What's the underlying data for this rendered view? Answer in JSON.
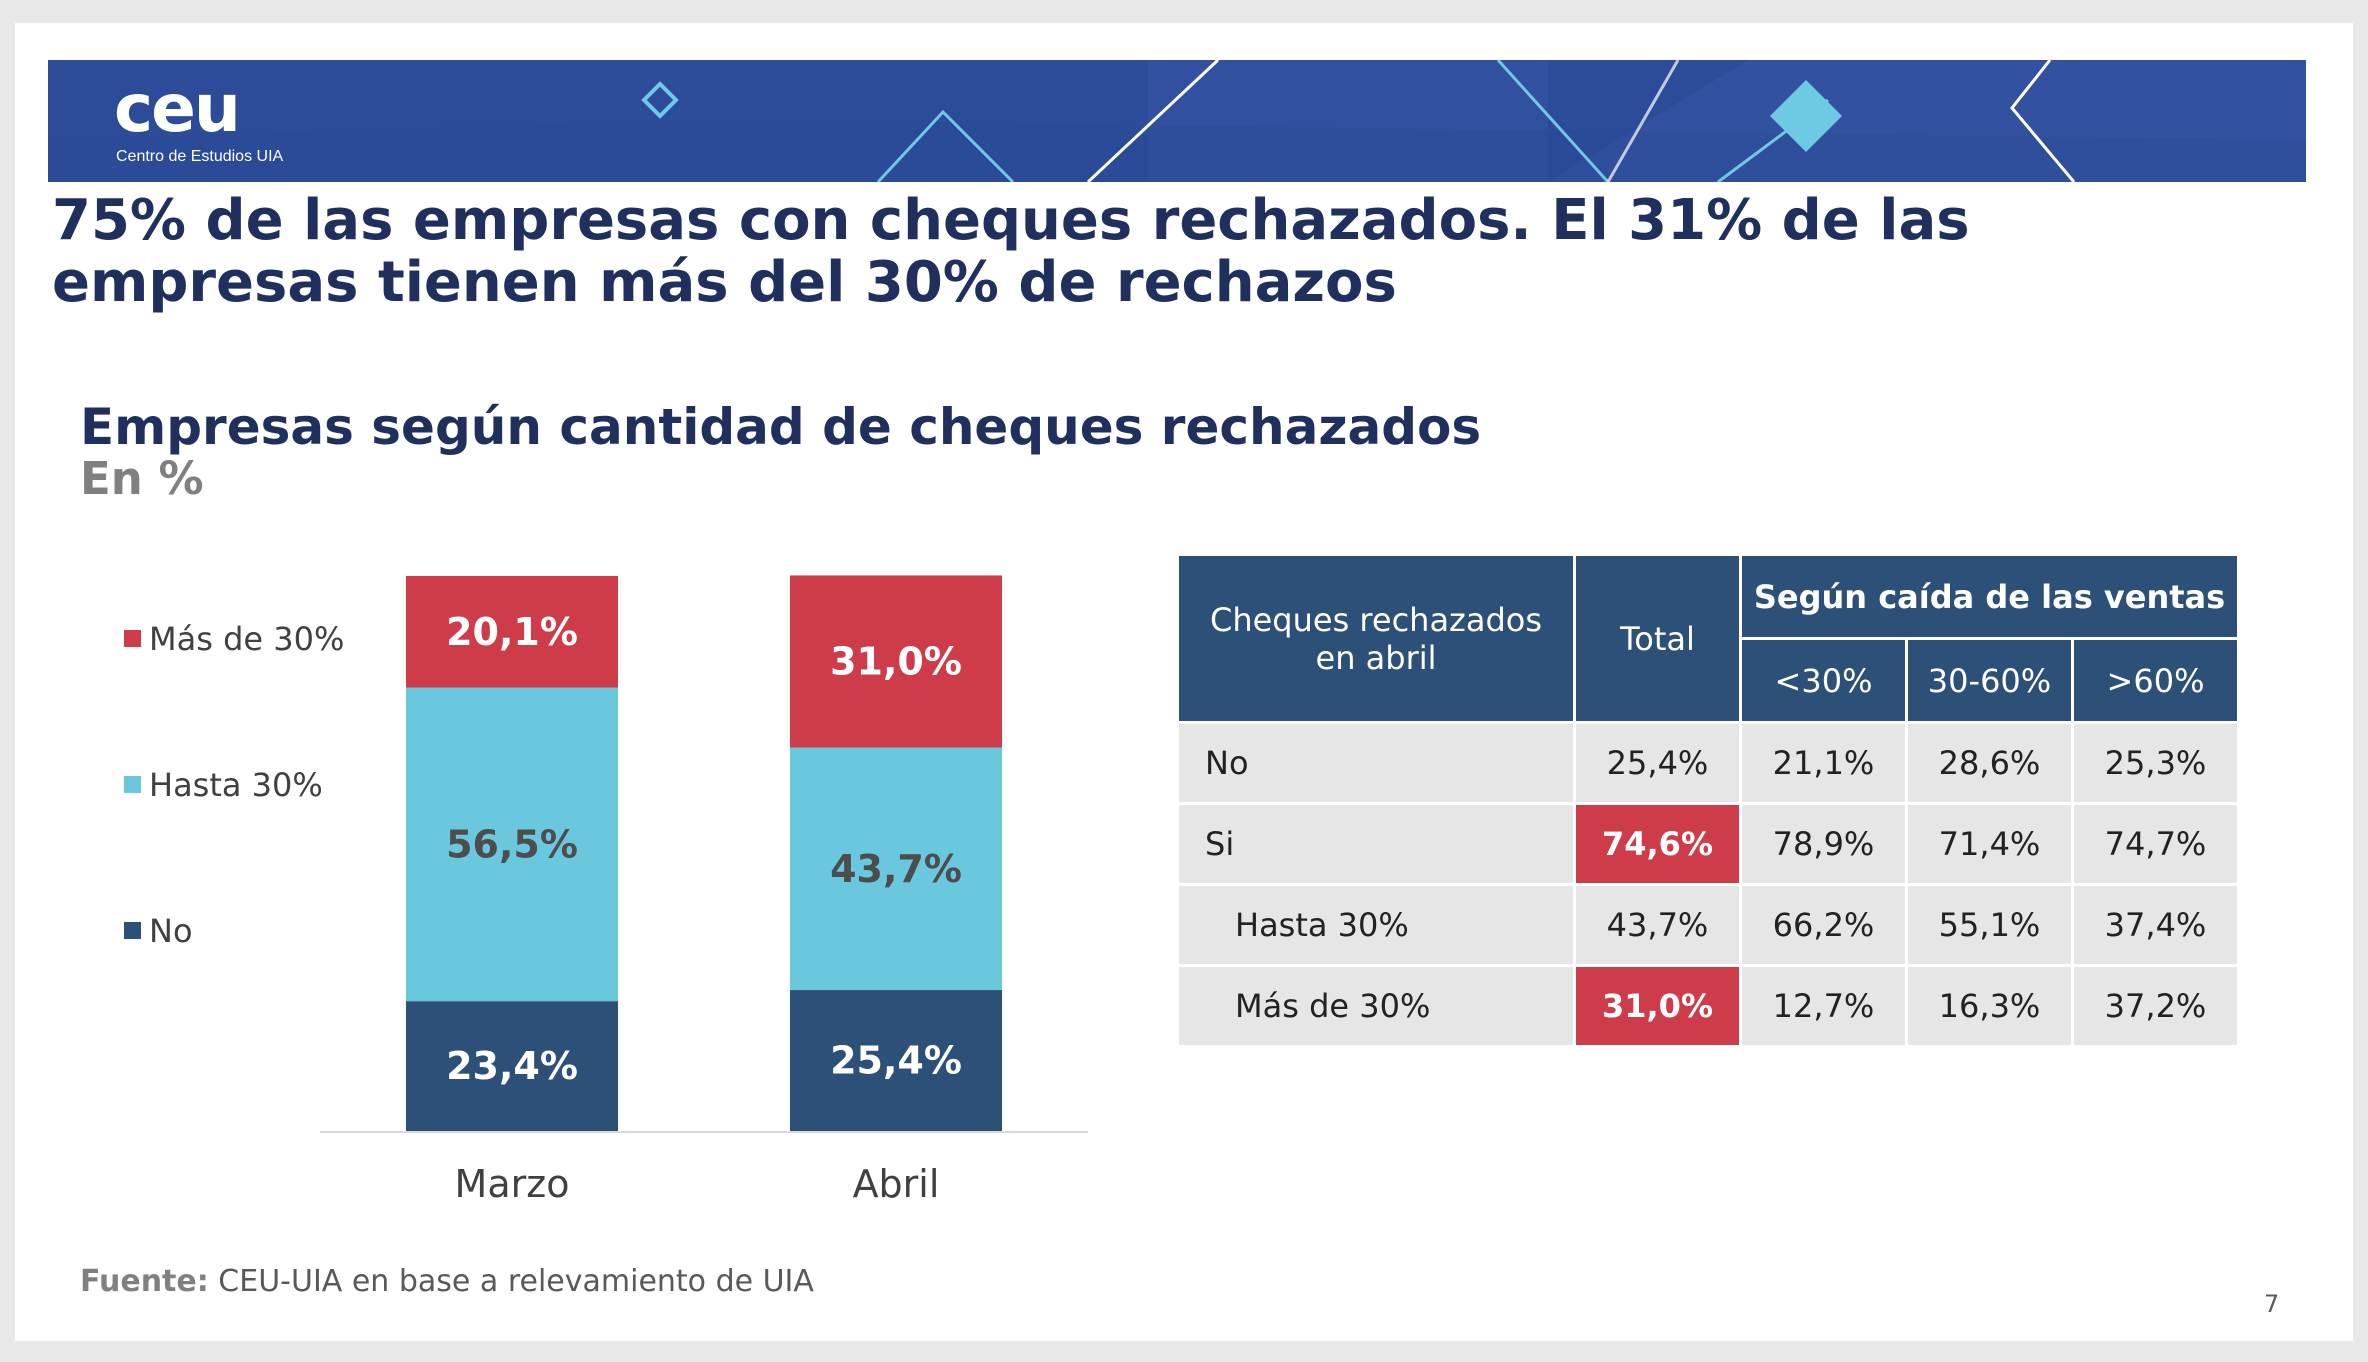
{
  "logo": {
    "mark": "ceu",
    "subtitle": "Centro de Estudios UIA"
  },
  "title": "75% de las empresas con cheques rechazados. El 31% de las empresas tienen más del 30% de rechazos",
  "colors": {
    "no": "#2c5077",
    "hasta30": "#69c8dd",
    "mas30": "#cd3c48",
    "navy_text": "#1f2f5e",
    "banner": "#2c4b99"
  },
  "chart_data": {
    "type": "bar",
    "stacked": true,
    "title": "Empresas según cantidad de cheques rechazados",
    "subtitle": "En %",
    "categories": [
      "Marzo",
      "Abril"
    ],
    "series": [
      {
        "name": "No",
        "color": "#2c5077",
        "values": [
          23.4,
          25.4
        ],
        "labels": [
          "23,4%",
          "25,4%"
        ]
      },
      {
        "name": "Hasta 30%",
        "color": "#69c8dd",
        "values": [
          56.5,
          43.7
        ],
        "labels": [
          "56,5%",
          "43,7%"
        ]
      },
      {
        "name": "Más de 30%",
        "color": "#cd3c48",
        "values": [
          20.1,
          31.0
        ],
        "labels": [
          "20,1%",
          "31,0%"
        ]
      }
    ],
    "legend_order": [
      "Más de 30%",
      "Hasta 30%",
      "No"
    ],
    "legend_position": "left",
    "ylim": [
      0,
      100
    ],
    "xlabel": "",
    "ylabel": ""
  },
  "table": {
    "corner_header": "Cheques rechazados en abril",
    "total_header": "Total",
    "group_header": "Según caída de las ventas",
    "sub_headers": [
      "<30%",
      "30-60%",
      ">60%"
    ],
    "rows": [
      {
        "label": "No",
        "total": "25,4%",
        "c1": "21,1%",
        "c2": "28,6%",
        "c3": "25,3%"
      },
      {
        "label": "Si",
        "total": "74,6%",
        "c1": "78,9%",
        "c2": "71,4%",
        "c3": "74,7%"
      },
      {
        "label": "Hasta 30%",
        "total": "43,7%",
        "c1": "66,2%",
        "c2": "55,1%",
        "c3": "37,4%"
      },
      {
        "label": "Más de 30%",
        "total": "31,0%",
        "c1": "12,7%",
        "c2": "16,3%",
        "c3": "37,2%"
      }
    ]
  },
  "source": {
    "label": "Fuente:",
    "text": "CEU-UIA en base a relevamiento de UIA"
  },
  "page_number": "7"
}
